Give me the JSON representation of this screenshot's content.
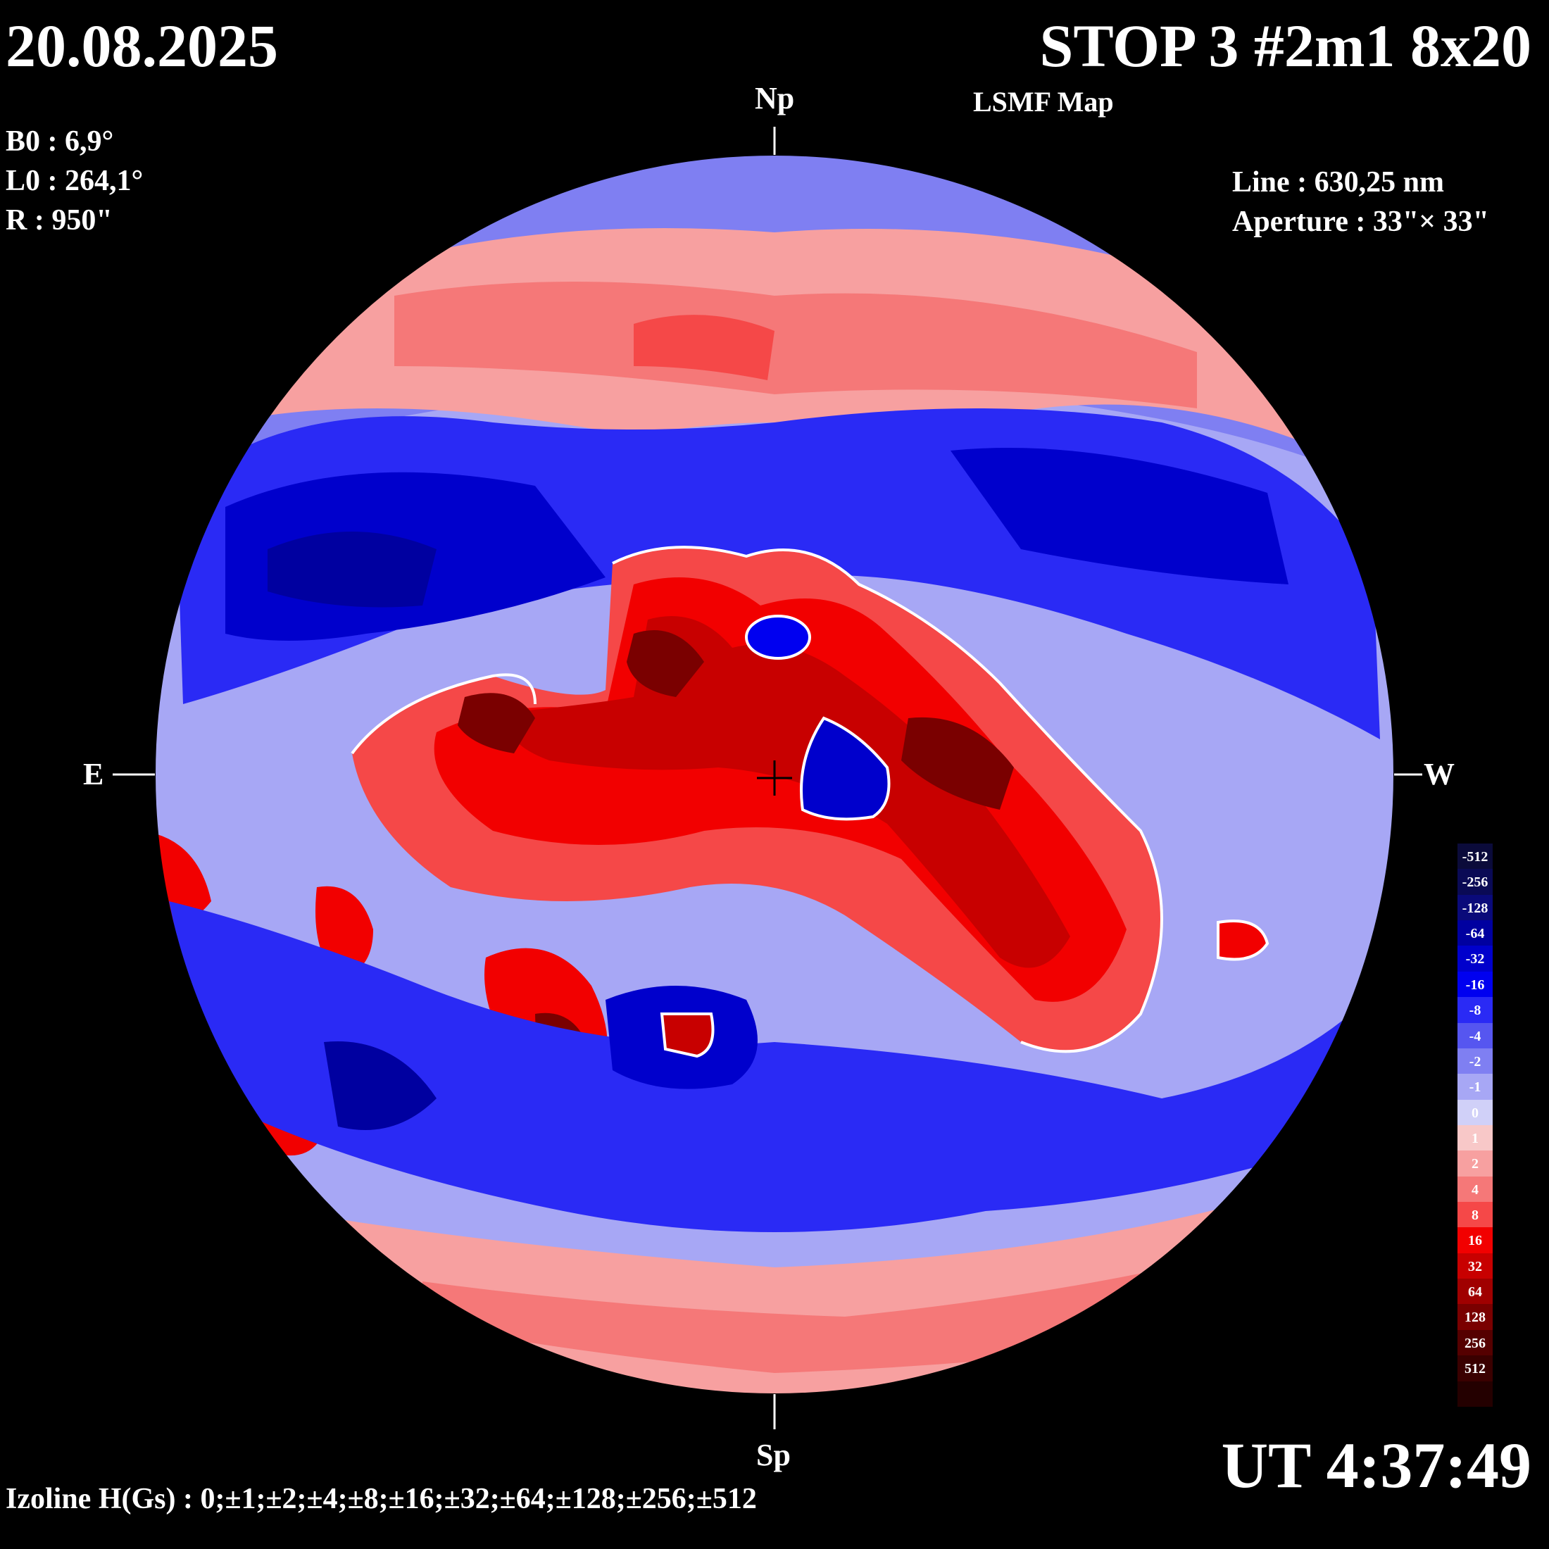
{
  "header": {
    "date": "20.08.2025",
    "title": "STOP 3 #2m1 8x20",
    "subtitle": "LSMF  Map"
  },
  "parameters": {
    "b0": "B0 : 6,9°",
    "l0": "L0 : 264,1°",
    "r": "R  : 950\""
  },
  "instrument": {
    "line": "Line :  630,25 nm",
    "aperture": "Aperture : 33\"× 33\""
  },
  "compass": {
    "north": "Np",
    "south": "Sp",
    "east": "E",
    "west": "W"
  },
  "time": "UT 4:37:49",
  "izoline": "Izoline H(Gs) : 0;±1;±2;±4;±8;±16;±32;±64;±128;±256;±512",
  "color_scale": {
    "levels": [
      {
        "label": "-512",
        "color": "#0b0b3a"
      },
      {
        "label": "-256",
        "color": "#0a0a55"
      },
      {
        "label": "-128",
        "color": "#0a0a7a"
      },
      {
        "label": "-64",
        "color": "#0000a0"
      },
      {
        "label": "-32",
        "color": "#0000cc"
      },
      {
        "label": "-16",
        "color": "#0000f0"
      },
      {
        "label": "-8",
        "color": "#2a2af5"
      },
      {
        "label": "-4",
        "color": "#5656f0"
      },
      {
        "label": "-2",
        "color": "#7f7ff2"
      },
      {
        "label": "-1",
        "color": "#a7a7f5"
      },
      {
        "label": "0",
        "color": "#d0d0f8"
      },
      {
        "label": "1",
        "color": "#f8c8c8"
      },
      {
        "label": "2",
        "color": "#f7a0a0"
      },
      {
        "label": "4",
        "color": "#f57878"
      },
      {
        "label": "8",
        "color": "#f54848"
      },
      {
        "label": "16",
        "color": "#f20000"
      },
      {
        "label": "32",
        "color": "#c80000"
      },
      {
        "label": "64",
        "color": "#a00000"
      },
      {
        "label": "128",
        "color": "#7a0000"
      },
      {
        "label": "256",
        "color": "#550000"
      },
      {
        "label": "512",
        "color": "#3a0000"
      },
      {
        "label": "",
        "color": "#240000"
      }
    ]
  },
  "colors": {
    "background": "#000000",
    "positive_field": "#f20000",
    "negative_field": "#0000f0",
    "neutral_line": "#ffffff"
  }
}
